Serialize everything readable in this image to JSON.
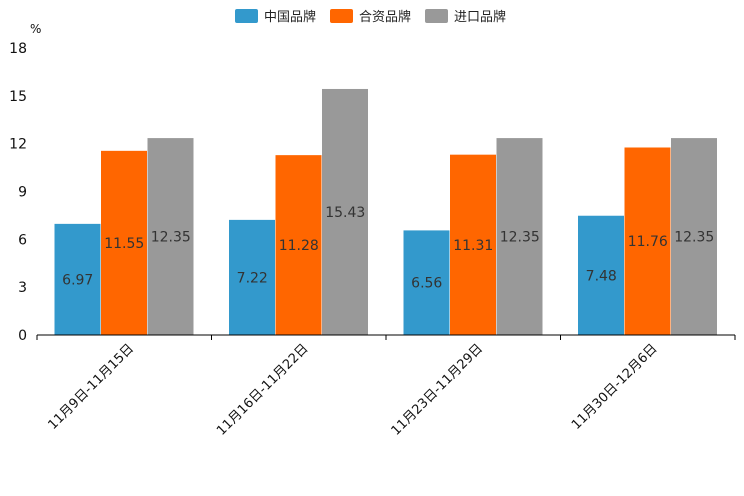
{
  "chart_data": {
    "type": "bar",
    "title": "",
    "unit_label": "%",
    "xlabel": "",
    "ylabel": "%",
    "ylim": [
      0,
      18
    ],
    "yticks": [
      0,
      3,
      6,
      9,
      12,
      15,
      18
    ],
    "grid": false,
    "legend_position": "top-center",
    "categories": [
      "11月9日-11月15日",
      "11月16日-11月22日",
      "11月23日-11月29日",
      "11月30日-12月6日"
    ],
    "series": [
      {
        "name": "中国品牌",
        "color": "#3399cc",
        "values": [
          6.97,
          7.22,
          6.56,
          7.48
        ]
      },
      {
        "name": "合资品牌",
        "color": "#ff6600",
        "values": [
          11.55,
          11.28,
          11.31,
          11.76
        ]
      },
      {
        "name": "进口品牌",
        "color": "#999999",
        "values": [
          12.35,
          15.43,
          12.35,
          12.35
        ]
      }
    ]
  }
}
